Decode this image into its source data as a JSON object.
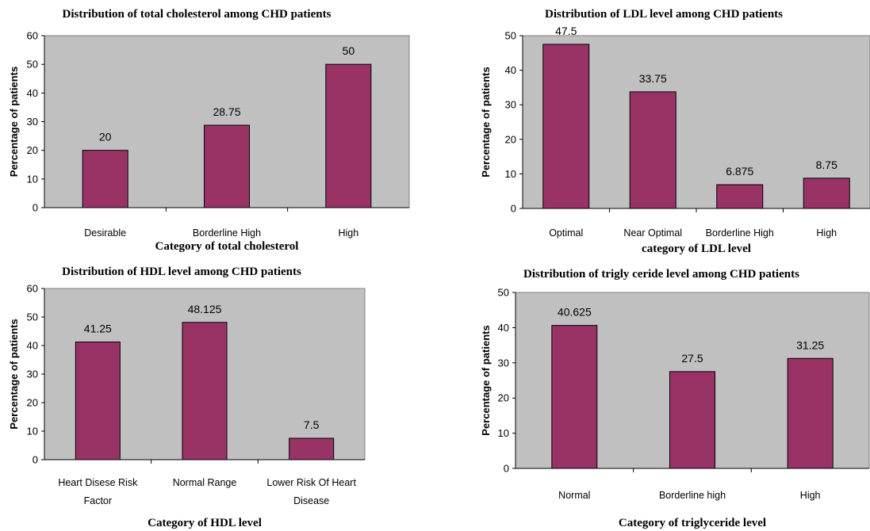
{
  "colors": {
    "plot_background": "#c0c0c0",
    "bar_fill": "#993366",
    "bar_stroke": "#000000"
  },
  "chart_data": [
    {
      "type": "bar",
      "title": "Distribution of total cholesterol among CHD patients",
      "xlabel": "Category of total cholesterol",
      "ylabel": "Percentage of patients",
      "categories": [
        "Desirable",
        "Borderline High",
        "High"
      ],
      "values": [
        20,
        28.75,
        50
      ],
      "data_labels": [
        "20",
        "28.75",
        "50"
      ],
      "ylim": [
        0,
        60
      ],
      "yticks": [
        0,
        10,
        20,
        30,
        40,
        50,
        60
      ],
      "grid": false,
      "legend": "none"
    },
    {
      "type": "bar",
      "title": "Distribution of LDL level among CHD patients",
      "xlabel": "category of LDL level",
      "ylabel": "Percentage of patients",
      "categories": [
        "Optimal",
        "Near Optimal",
        "Borderline High",
        "High"
      ],
      "values": [
        47.5,
        33.75,
        6.875,
        8.75
      ],
      "data_labels": [
        "47.5",
        "33.75",
        "6.875",
        "8.75"
      ],
      "ylim": [
        0,
        50
      ],
      "yticks": [
        0,
        10,
        20,
        30,
        40,
        50
      ],
      "grid": false,
      "legend": "none"
    },
    {
      "type": "bar",
      "title": "Distribution of HDL level among CHD patients",
      "xlabel": "Category of HDL level",
      "ylabel": "Percentage of patients",
      "categories": [
        [
          "Heart Disese Risk",
          "Factor"
        ],
        [
          "Normal Range"
        ],
        [
          "Lower Risk Of Heart",
          "Disease"
        ]
      ],
      "values": [
        41.25,
        48.125,
        7.5
      ],
      "data_labels": [
        "41.25",
        "48.125",
        "7.5"
      ],
      "ylim": [
        0,
        60
      ],
      "yticks": [
        0,
        10,
        20,
        30,
        40,
        50,
        60
      ],
      "grid": false,
      "legend": "none"
    },
    {
      "type": "bar",
      "title": "Distribution of trigly ceride level among CHD patients",
      "xlabel": "Category of triglyceride level",
      "ylabel": "Percentage of patients",
      "categories": [
        "Normal",
        "Borderline high",
        "High"
      ],
      "values": [
        40.625,
        27.5,
        31.25
      ],
      "data_labels": [
        "40.625",
        "27.5",
        "31.25"
      ],
      "ylim": [
        0,
        50
      ],
      "yticks": [
        0,
        10,
        20,
        30,
        40,
        50
      ],
      "grid": false,
      "legend": "none"
    }
  ]
}
